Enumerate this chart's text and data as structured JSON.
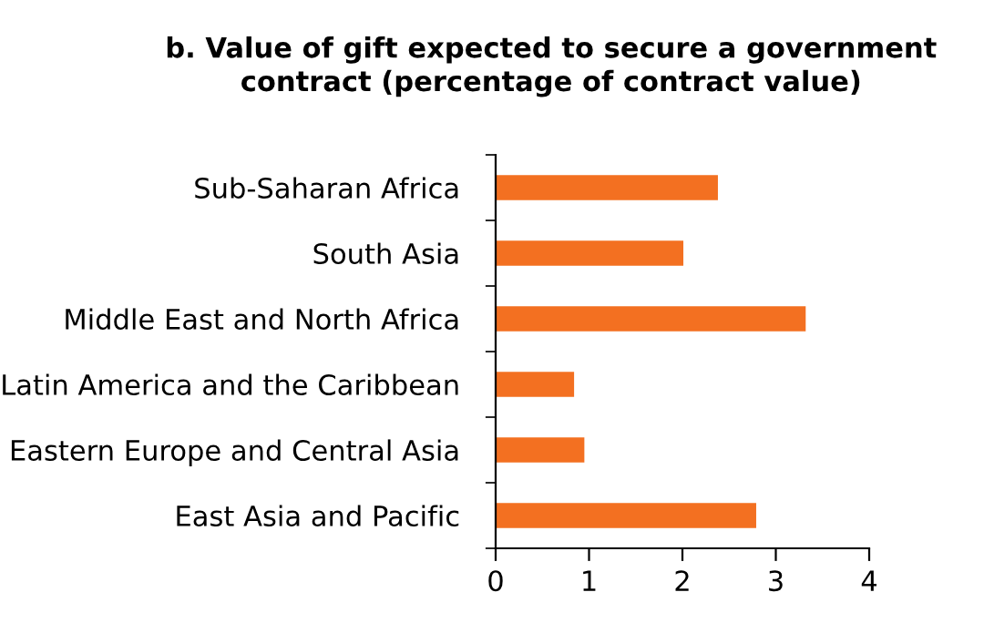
{
  "chart_data": {
    "type": "bar",
    "orientation": "horizontal",
    "title": "b. Value of gift expected to secure a government\ncontract (percentage of contract value)",
    "categories": [
      "Sub-Saharan Africa",
      "South Asia",
      "Middle East and North Africa",
      "Latin America and the Caribbean",
      "Eastern Europe and Central Asia",
      "East Asia and Pacific"
    ],
    "series": [
      {
        "color": "#f37021",
        "values": [
          2.38,
          2.01,
          3.32,
          0.84,
          0.95,
          2.79
        ]
      }
    ],
    "xlim": [
      0,
      4
    ],
    "xticks": [
      0,
      1,
      2,
      3,
      4
    ],
    "grid": false
  }
}
